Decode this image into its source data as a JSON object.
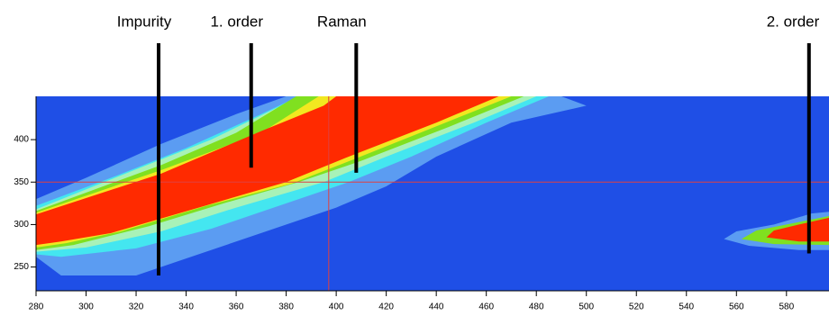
{
  "chart_data": {
    "type": "contour",
    "background": "#1f4fe6",
    "xlim": [
      280,
      597
    ],
    "ylim": [
      222,
      451
    ],
    "xticks": [
      280,
      300,
      320,
      340,
      360,
      380,
      400,
      420,
      440,
      460,
      480,
      500,
      520,
      540,
      560,
      580
    ],
    "yticks": [
      250,
      300,
      350,
      400
    ],
    "crosshair": {
      "x": 397,
      "y": 350,
      "color": "#e04040"
    },
    "bands": [
      {
        "color": "#5b9cf2",
        "x": [
          280,
          280,
          300,
          330,
          360,
          380,
          490,
          500,
          470,
          440,
          420,
          400,
          370,
          340,
          320,
          290
        ],
        "y": [
          262,
          330,
          355,
          395,
          430,
          451,
          451,
          440,
          420,
          380,
          345,
          320,
          290,
          260,
          240,
          240
        ]
      },
      {
        "color": "#44e6f0",
        "x": [
          280,
          280,
          310,
          340,
          370,
          385,
          485,
          460,
          430,
          405,
          380,
          350,
          320,
          290
        ],
        "y": [
          265,
          322,
          355,
          390,
          430,
          451,
          451,
          420,
          380,
          350,
          325,
          295,
          272,
          262
        ]
      },
      {
        "color": "#a8f2b8",
        "x": [
          280,
          280,
          320,
          350,
          378,
          388,
          480,
          455,
          420,
          395,
          360,
          330,
          300
        ],
        "y": [
          268,
          318,
          365,
          400,
          440,
          451,
          451,
          420,
          380,
          350,
          320,
          292,
          273
        ]
      },
      {
        "color": "#80e020",
        "x": [
          280,
          280,
          330,
          360,
          384,
          475,
          445,
          410,
          385,
          355,
          325,
          295
        ],
        "y": [
          270,
          316,
          370,
          408,
          451,
          451,
          415,
          375,
          350,
          325,
          298,
          276
        ]
      },
      {
        "color": "#f2e820",
        "x": [
          280,
          280,
          330,
          370,
          393,
          470,
          442,
          408,
          382,
          348,
          314,
          292
        ],
        "y": [
          273,
          314,
          364,
          408,
          451,
          451,
          418,
          378,
          348,
          322,
          292,
          278
        ]
      },
      {
        "color": "#ff2a00",
        "x": [
          280,
          280,
          330,
          370,
          395,
          400,
          465,
          440,
          405,
          380,
          345,
          310,
          290
        ],
        "y": [
          276,
          312,
          360,
          410,
          440,
          451,
          451,
          420,
          380,
          350,
          320,
          290,
          280
        ]
      },
      {
        "color": "#5b9cf2",
        "x": [
          555,
          565,
          585,
          597,
          597,
          590,
          575,
          560
        ],
        "y": [
          283,
          275,
          270,
          270,
          315,
          313,
          300,
          292
        ]
      },
      {
        "color": "#80e020",
        "x": [
          562,
          575,
          597,
          597,
          585,
          568
        ],
        "y": [
          283,
          277,
          276,
          310,
          303,
          293
        ]
      },
      {
        "color": "#ff2a00",
        "x": [
          572,
          585,
          597,
          597,
          585,
          575
        ],
        "y": [
          285,
          280,
          280,
          308,
          300,
          293
        ]
      }
    ],
    "annotations": [
      {
        "label": "Impurity",
        "x": 329,
        "y": 240
      },
      {
        "label": "1. order",
        "x": 366,
        "y": 367
      },
      {
        "label": "Raman",
        "x": 408,
        "y": 361
      },
      {
        "label": "2. order",
        "x": 589,
        "y": 266
      }
    ]
  }
}
